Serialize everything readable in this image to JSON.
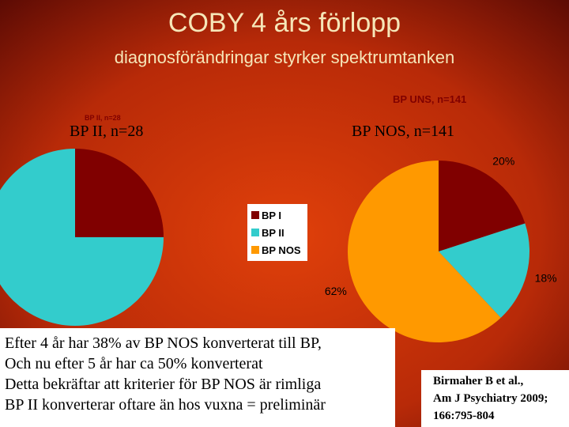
{
  "slide": {
    "title": "COBY 4 års förlopp",
    "subtitle": "diagnosförändringar styrker spektrumtanken",
    "left_heading": "BP II, n=28",
    "right_heading": "BP NOS, n=141",
    "body": [
      "Efter 4 år har 38% av BP NOS konverterat till BP,",
      "Och nu efter 5 år har ca 50% konverterat",
      "Detta bekräftar att kriterier för BP NOS är rimliga",
      "BP II konverterar oftare än hos vuxna = preliminär"
    ],
    "citation": [
      "Birmaher B et al.,",
      "Am J Psychiatry 2009;",
      "166:795-804"
    ]
  },
  "chart_data": [
    {
      "type": "pie",
      "title": "BP II, n=28",
      "categories": [
        "BP I",
        "BP II",
        "BP NOS"
      ],
      "values": [
        25,
        75,
        0
      ],
      "colors": [
        "#800000",
        "#33cccc",
        "#ff9900"
      ]
    },
    {
      "type": "pie",
      "title": "BP UNS, n=141",
      "categories": [
        "BP I",
        "BP II",
        "BP NOS"
      ],
      "values": [
        20,
        18,
        62
      ],
      "value_labels": [
        "20%",
        "18%",
        "62%"
      ],
      "colors": [
        "#800000",
        "#33cccc",
        "#ff9900"
      ]
    }
  ]
}
